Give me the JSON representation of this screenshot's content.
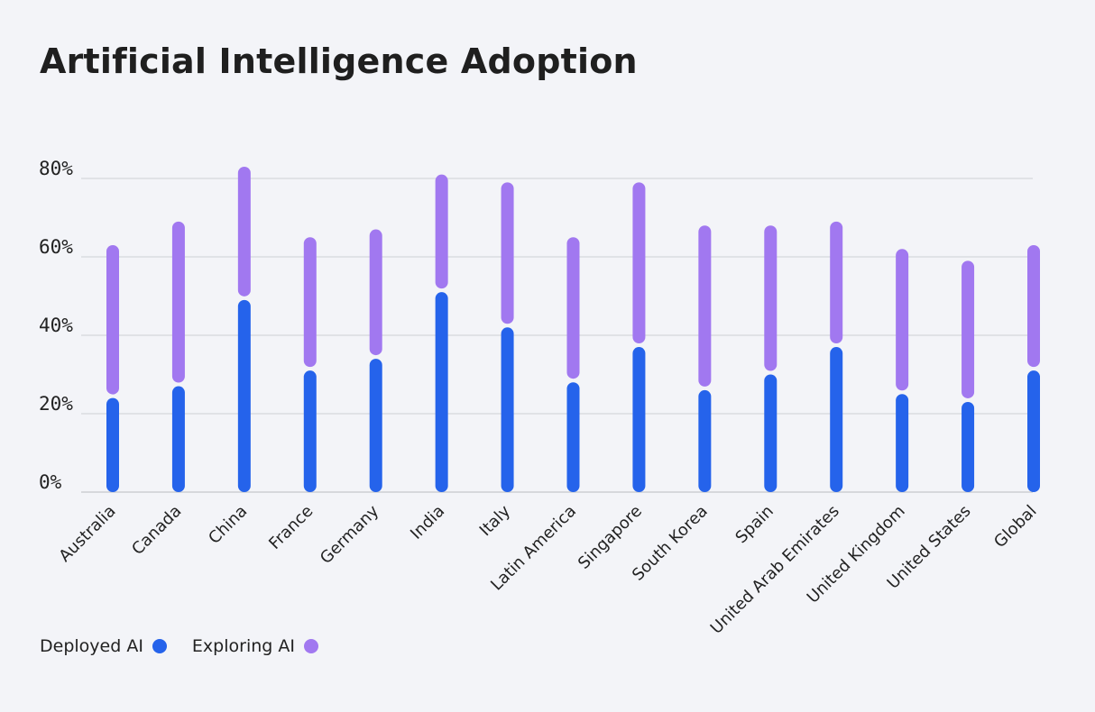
{
  "chart_data": {
    "type": "bar",
    "title": "Artificial Intelligence Adoption",
    "categories": [
      "Australia",
      "Canada",
      "China",
      "France",
      "Germany",
      "India",
      "Italy",
      "Latin America",
      "Singapore",
      "South Korea",
      "Spain",
      "United Arab Emirates",
      "United Kingdom",
      "United States",
      "Global"
    ],
    "series": [
      {
        "name": "Deployed AI",
        "color": "#2563eb",
        "values": [
          24,
          27,
          49,
          31,
          34,
          51,
          42,
          28,
          37,
          26,
          30,
          37,
          25,
          23,
          31
        ]
      },
      {
        "name": "Exploring AI",
        "color": "#a178f0",
        "values": [
          63,
          69,
          83,
          65,
          67,
          81,
          79,
          65,
          79,
          68,
          68,
          69,
          62,
          59,
          63
        ]
      }
    ],
    "y_ticks": [
      {
        "value": 0,
        "label": "0%"
      },
      {
        "value": 20,
        "label": "20%"
      },
      {
        "value": 40,
        "label": "40%"
      },
      {
        "value": 60,
        "label": "60%"
      },
      {
        "value": 80,
        "label": "80%"
      }
    ],
    "ylim": [
      0,
      80
    ],
    "grid": true,
    "legend_position": "bottom-left",
    "xlabel": "",
    "ylabel": ""
  }
}
